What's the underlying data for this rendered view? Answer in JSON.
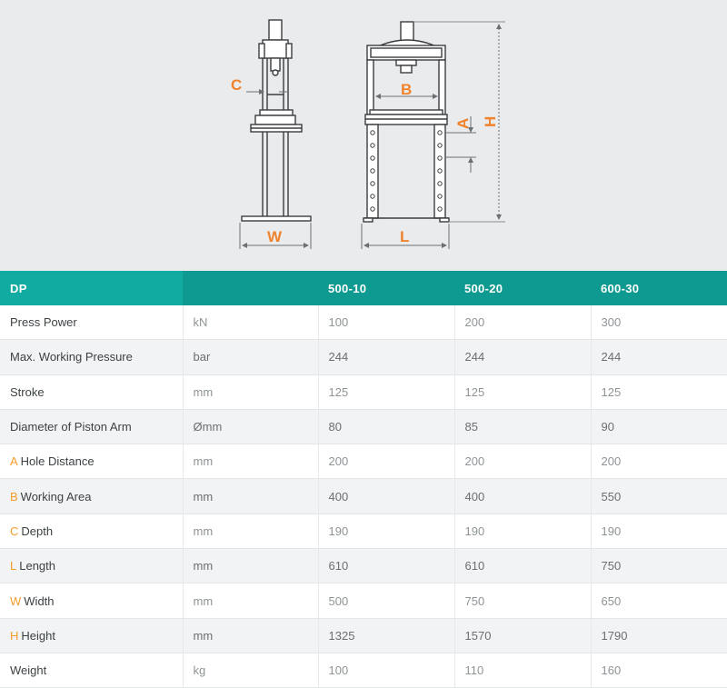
{
  "colors": {
    "accent_orange": "#f0832d",
    "header_teal": "#14a39b",
    "diagram_bg": "#e9ebec",
    "line": "#3a3d40",
    "dim_line": "#8a8f92"
  },
  "diagram": {
    "labels": {
      "c": "C",
      "w": "W",
      "b": "B",
      "a": "A",
      "h": "H",
      "l": "L"
    }
  },
  "table": {
    "header": [
      "DP",
      "",
      "500-10",
      "500-20",
      "600-30"
    ],
    "rows": [
      {
        "letter": "",
        "label": "Press Power",
        "unit": "kN",
        "values": [
          "100",
          "200",
          "300"
        ]
      },
      {
        "letter": "",
        "label": "Max. Working Pressure",
        "unit": "bar",
        "values": [
          "244",
          "244",
          "244"
        ]
      },
      {
        "letter": "",
        "label": "Stroke",
        "unit": "mm",
        "values": [
          "125",
          "125",
          "125"
        ]
      },
      {
        "letter": "",
        "label": "Diameter of Piston Arm",
        "unit": "Ømm",
        "values": [
          "80",
          "85",
          "90"
        ]
      },
      {
        "letter": "A",
        "label": "Hole Distance",
        "unit": "mm",
        "values": [
          "200",
          "200",
          "200"
        ]
      },
      {
        "letter": "B",
        "label": "Working Area",
        "unit": "mm",
        "values": [
          "400",
          "400",
          "550"
        ]
      },
      {
        "letter": "C",
        "label": "Depth",
        "unit": "mm",
        "values": [
          "190",
          "190",
          "190"
        ]
      },
      {
        "letter": "L",
        "label": "Length",
        "unit": "mm",
        "values": [
          "610",
          "610",
          "750"
        ]
      },
      {
        "letter": "W",
        "label": "Width",
        "unit": "mm",
        "values": [
          "500",
          "750",
          "650"
        ]
      },
      {
        "letter": "H",
        "label": "Height",
        "unit": "mm",
        "values": [
          "1325",
          "1570",
          "1790"
        ]
      },
      {
        "letter": "",
        "label": "Weight",
        "unit": "kg",
        "values": [
          "100",
          "110",
          "160"
        ]
      }
    ]
  }
}
